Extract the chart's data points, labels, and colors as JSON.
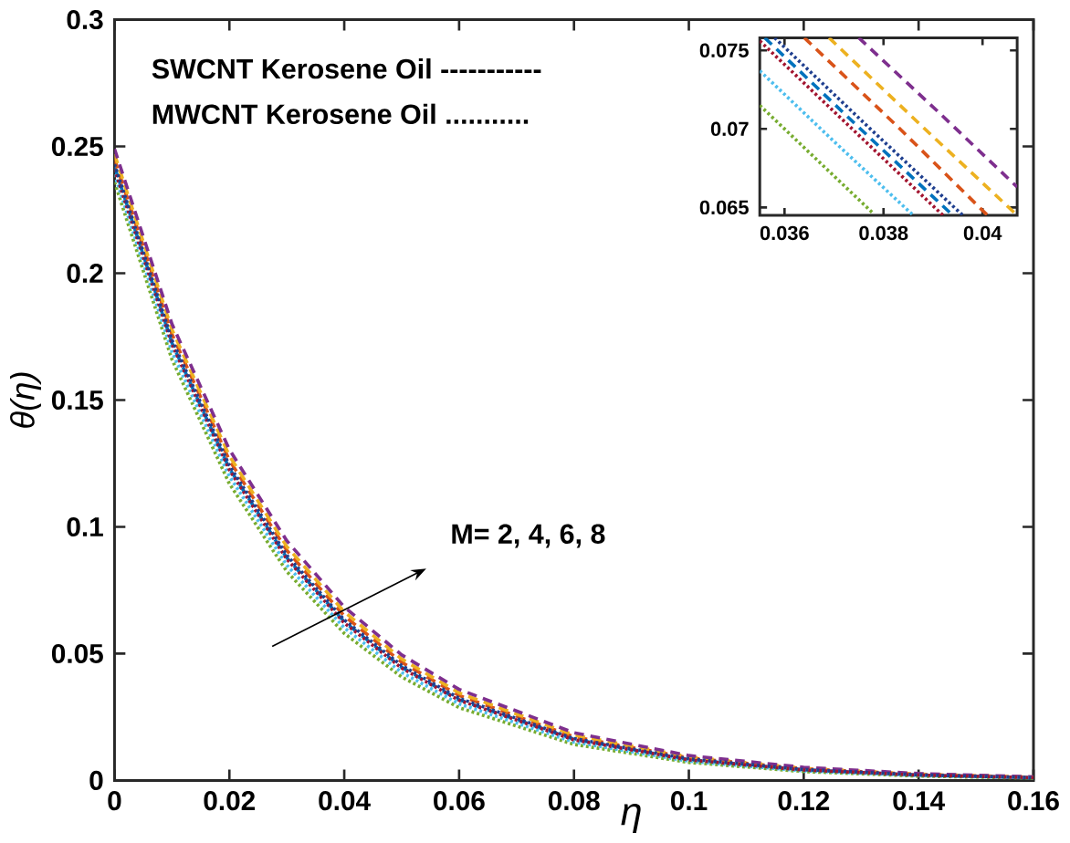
{
  "chart_data": [
    {
      "type": "line",
      "xlabel": "η",
      "ylabel": "θ(η)",
      "xlim": [
        0,
        0.16
      ],
      "ylim": [
        0,
        0.3
      ],
      "xticks": [
        0,
        0.02,
        0.04,
        0.06,
        0.08,
        0.1,
        0.12,
        0.14,
        0.16
      ],
      "yticks": [
        0,
        0.05,
        0.1,
        0.15,
        0.2,
        0.25,
        0.3
      ],
      "x": [
        0,
        0.01,
        0.02,
        0.03,
        0.04,
        0.05,
        0.06,
        0.08,
        0.1,
        0.12,
        0.14,
        0.16
      ],
      "annotations": [
        "SWCNT Kerosene Oil  -----------",
        "MWCNT Kerosene Oil  ...........",
        "M= 2, 4, 6, 8"
      ],
      "series": [
        {
          "color": "#0072bd",
          "line_style": "dashed",
          "values": [
            0.242,
            0.1725,
            0.123,
            0.0878,
            0.0626,
            0.0446,
            0.0318,
            0.0162,
            0.0082,
            0.0042,
            0.0021,
            0.0011
          ]
        },
        {
          "color": "#d95319",
          "line_style": "dashed",
          "values": [
            0.245,
            0.176,
            0.1263,
            0.0907,
            0.0649,
            0.0466,
            0.0335,
            0.0172,
            0.0089,
            0.0046,
            0.0024,
            0.0012
          ]
        },
        {
          "color": "#edb120",
          "line_style": "dashed",
          "values": [
            0.247,
            0.1778,
            0.128,
            0.0922,
            0.0665,
            0.0479,
            0.0345,
            0.0179,
            0.0093,
            0.0048,
            0.0025,
            0.0013
          ]
        },
        {
          "color": "#7e2f8e",
          "line_style": "dashed",
          "values": [
            0.249,
            0.18,
            0.1305,
            0.0945,
            0.0684,
            0.0495,
            0.0359,
            0.0188,
            0.0098,
            0.0052,
            0.0027,
            0.0014
          ]
        },
        {
          "color": "#77ac30",
          "line_style": "dotted",
          "values": [
            0.236,
            0.166,
            0.117,
            0.0824,
            0.058,
            0.0408,
            0.0287,
            0.0142,
            0.0071,
            0.0035,
            0.0017,
            0.0009
          ]
        },
        {
          "color": "#4dbeee",
          "line_style": "dotted",
          "values": [
            0.239,
            0.169,
            0.12,
            0.0849,
            0.0602,
            0.0426,
            0.0302,
            0.0151,
            0.0076,
            0.0038,
            0.0019,
            0.001
          ]
        },
        {
          "color": "#a2142f",
          "line_style": "dotted",
          "values": [
            0.241,
            0.172,
            0.1225,
            0.0873,
            0.0621,
            0.0443,
            0.0316,
            0.016,
            0.0081,
            0.0041,
            0.0021,
            0.0011
          ]
        },
        {
          "color": "#1f3f8f",
          "line_style": "dotted",
          "values": [
            0.243,
            0.1737,
            0.1242,
            0.0888,
            0.0633,
            0.0453,
            0.0324,
            0.0165,
            0.0085,
            0.0043,
            0.0022,
            0.0011
          ]
        }
      ]
    },
    {
      "type": "line",
      "xlim": [
        0.0355,
        0.0407
      ],
      "ylim": [
        0.0645,
        0.0758
      ],
      "xticks": [
        0.036,
        0.038,
        0.04
      ],
      "yticks": [
        0.065,
        0.07,
        0.075
      ],
      "series": [
        {
          "color": "#0072bd",
          "line_style": "dashed",
          "x": [
            0.0356,
            0.0375,
            0.0394
          ],
          "values": [
            0.0758,
            0.0701,
            0.0645
          ]
        },
        {
          "color": "#d95319",
          "line_style": "dashed",
          "x": [
            0.0364,
            0.0383,
            0.0401
          ],
          "values": [
            0.0758,
            0.0701,
            0.0645
          ]
        },
        {
          "color": "#edb120",
          "line_style": "dashed",
          "x": [
            0.0369,
            0.0388,
            0.0407
          ],
          "values": [
            0.0758,
            0.0701,
            0.0645
          ]
        },
        {
          "color": "#7e2f8e",
          "line_style": "dashed",
          "x": [
            0.0375,
            0.0391,
            0.0407
          ],
          "values": [
            0.0758,
            0.0711,
            0.0663
          ]
        },
        {
          "color": "#77ac30",
          "line_style": "dotted",
          "x": [
            0.0355,
            0.0367,
            0.0378
          ],
          "values": [
            0.0715,
            0.0679,
            0.0646
          ]
        },
        {
          "color": "#4dbeee",
          "line_style": "dotted",
          "x": [
            0.0355,
            0.037,
            0.0386
          ],
          "values": [
            0.0737,
            0.0692,
            0.0645
          ]
        },
        {
          "color": "#a2142f",
          "line_style": "dotted",
          "x": [
            0.0355,
            0.0373,
            0.0392
          ],
          "values": [
            0.0756,
            0.0702,
            0.0645
          ]
        },
        {
          "color": "#1f3f8f",
          "line_style": "dotted",
          "x": [
            0.0358,
            0.0377,
            0.0396
          ],
          "values": [
            0.0758,
            0.0701,
            0.0645
          ]
        }
      ]
    }
  ]
}
